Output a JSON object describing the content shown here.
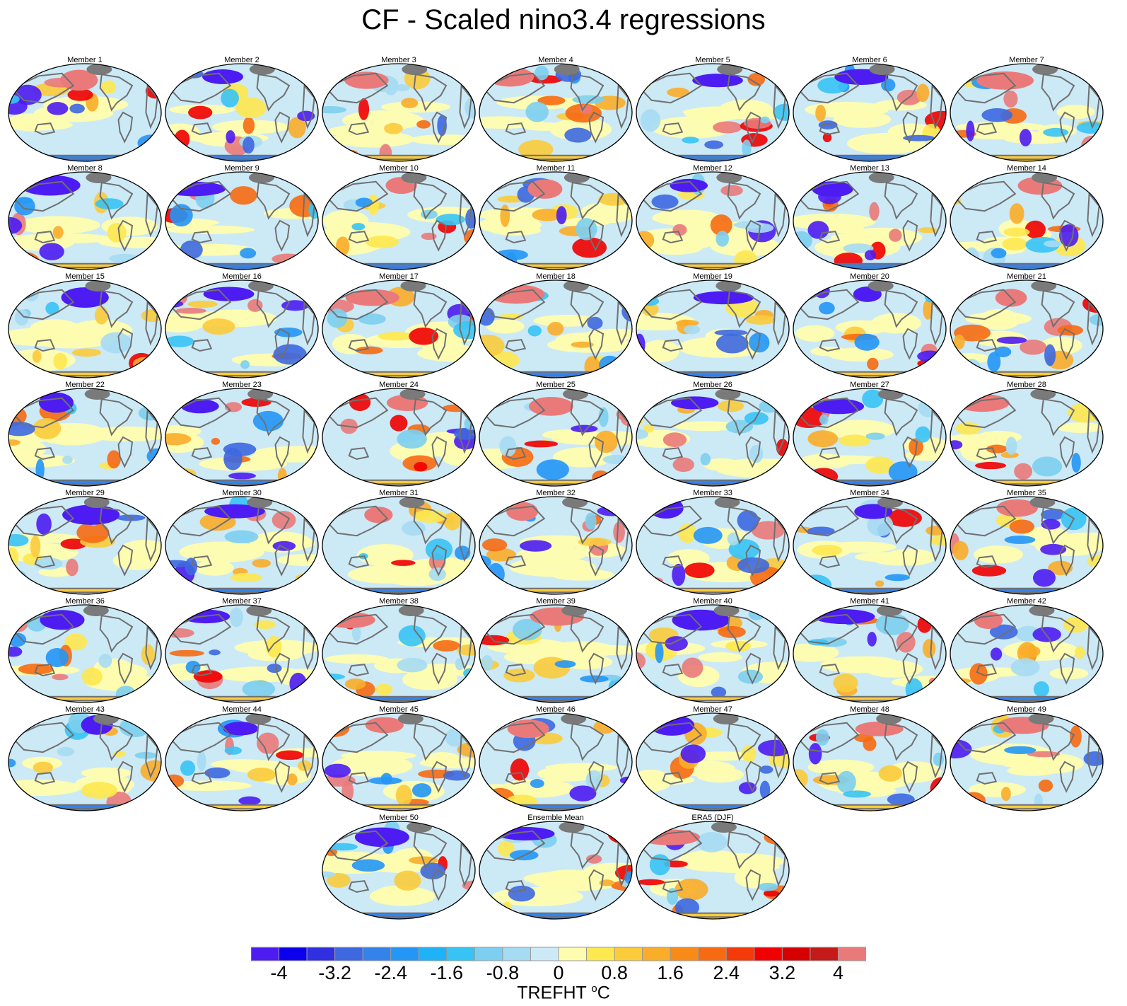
{
  "title": "CF - Scaled nino3.4 regressions",
  "panels": [
    {
      "label": "Member 1"
    },
    {
      "label": "Member 2"
    },
    {
      "label": "Member 3"
    },
    {
      "label": "Member 4"
    },
    {
      "label": "Member 5"
    },
    {
      "label": "Member 6"
    },
    {
      "label": "Member 7"
    },
    {
      "label": "Member 8"
    },
    {
      "label": "Member 9"
    },
    {
      "label": "Member 10"
    },
    {
      "label": "Member 11"
    },
    {
      "label": "Member 12"
    },
    {
      "label": "Member 13"
    },
    {
      "label": "Member 14"
    },
    {
      "label": "Member 15"
    },
    {
      "label": "Member 16"
    },
    {
      "label": "Member 17"
    },
    {
      "label": "Member 18"
    },
    {
      "label": "Member 19"
    },
    {
      "label": "Member 20"
    },
    {
      "label": "Member 21"
    },
    {
      "label": "Member 22"
    },
    {
      "label": "Member 23"
    },
    {
      "label": "Member 24"
    },
    {
      "label": "Member 25"
    },
    {
      "label": "Member 26"
    },
    {
      "label": "Member 27"
    },
    {
      "label": "Member 28"
    },
    {
      "label": "Member 29"
    },
    {
      "label": "Member 30"
    },
    {
      "label": "Member 31"
    },
    {
      "label": "Member 32"
    },
    {
      "label": "Member 33"
    },
    {
      "label": "Member 34"
    },
    {
      "label": "Member 35"
    },
    {
      "label": "Member 36"
    },
    {
      "label": "Member 37"
    },
    {
      "label": "Member 38"
    },
    {
      "label": "Member 39"
    },
    {
      "label": "Member 40"
    },
    {
      "label": "Member 41"
    },
    {
      "label": "Member 42"
    },
    {
      "label": "Member 43"
    },
    {
      "label": "Member 44"
    },
    {
      "label": "Member 45"
    },
    {
      "label": "Member 46"
    },
    {
      "label": "Member 47"
    },
    {
      "label": "Member 48"
    },
    {
      "label": "Member 49"
    },
    {
      "label": "Member 50"
    },
    {
      "label": "Ensemble Mean"
    },
    {
      "label": "ERA5 (DJF)"
    }
  ],
  "colorbar": {
    "tick_labels": [
      "-4",
      "-3.2",
      "-2.4",
      "-1.6",
      "-0.8",
      "0",
      "0.8",
      "1.6",
      "2.4",
      "3.2",
      "4"
    ],
    "variable": "TREFHT",
    "unit_symbol": "o",
    "unit_letter": "C",
    "colors": [
      "#4c1cf2",
      "#0a00ee",
      "#3030e0",
      "#3d68e0",
      "#3583ea",
      "#2496f6",
      "#1fb2f7",
      "#38c3f5",
      "#7ccff0",
      "#a6dbf3",
      "#cce9f6",
      "#fefdaf",
      "#fee84f",
      "#fbcb3c",
      "#f9ad2a",
      "#f88a18",
      "#f66a12",
      "#f33a08",
      "#f00000",
      "#d60000",
      "#c41a1a",
      "#ea7a7a"
    ]
  },
  "map_colors": {
    "ocean_base": "#cce9f6",
    "land_outline": "#707070",
    "border": "#000000",
    "ice": "#7a7a7a"
  }
}
